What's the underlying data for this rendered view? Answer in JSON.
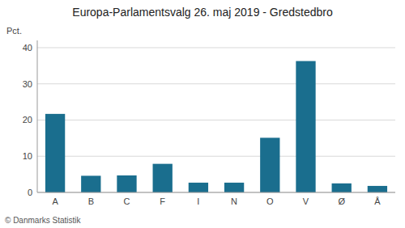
{
  "chart_data": {
    "type": "bar",
    "title": "Europa-Parlamentsvalg 26. maj 2019 - Gredstedbro",
    "y_label": "Pct.",
    "annotations": [
      "© Danmarks Statistik"
    ],
    "categories": [
      "A",
      "B",
      "C",
      "F",
      "I",
      "N",
      "O",
      "V",
      "Ø",
      "Å"
    ],
    "values": [
      21.7,
      4.6,
      4.7,
      7.9,
      2.7,
      2.7,
      15.1,
      36.3,
      2.5,
      1.8
    ],
    "color": "#1a6e8e",
    "ylim": [
      0,
      42
    ],
    "yticks": [
      0,
      10,
      20,
      30,
      40
    ],
    "grid": true
  }
}
